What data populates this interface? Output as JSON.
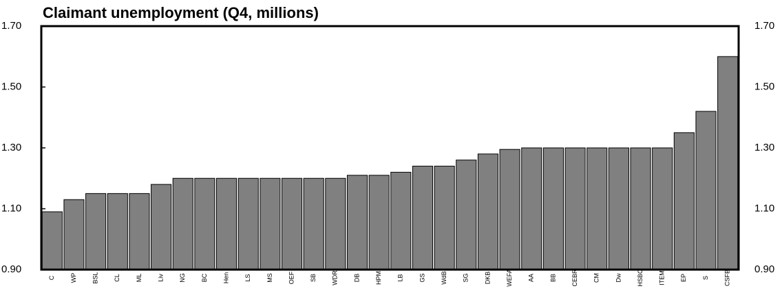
{
  "chart_data": {
    "type": "bar",
    "title": "Claimant unemployment (Q4, millions)",
    "categories": [
      "C",
      "WP",
      "BSL",
      "CL",
      "ML",
      "Liv",
      "NG",
      "BC",
      "Hen",
      "LS",
      "MS",
      "OEF",
      "SB",
      "WDR",
      "DB",
      "HPM",
      "LB",
      "GS",
      "WdB",
      "SG",
      "DKB",
      "WEFA",
      "AA",
      "BB",
      "CEBR",
      "CM",
      "Dw",
      "HSBC",
      "ITEM",
      "EP",
      "S",
      "CSFB"
    ],
    "values": [
      1.09,
      1.13,
      1.15,
      1.15,
      1.15,
      1.18,
      1.2,
      1.2,
      1.2,
      1.2,
      1.2,
      1.2,
      1.2,
      1.2,
      1.21,
      1.21,
      1.22,
      1.24,
      1.24,
      1.26,
      1.28,
      1.295,
      1.3,
      1.3,
      1.3,
      1.3,
      1.3,
      1.3,
      1.3,
      1.35,
      1.42,
      1.6
    ],
    "color": "#808080",
    "ylim": [
      0.9,
      1.7
    ],
    "yticks": [
      {
        "value": 0.9,
        "label": "0.90"
      },
      {
        "value": 1.1,
        "label": "1.10"
      },
      {
        "value": 1.3,
        "label": "1.30"
      },
      {
        "value": 1.5,
        "label": "1.50"
      },
      {
        "value": 1.7,
        "label": "1.70"
      }
    ]
  }
}
